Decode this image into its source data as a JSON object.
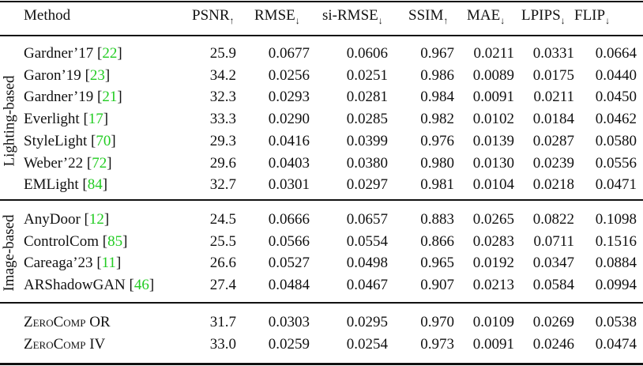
{
  "table": {
    "columns": [
      {
        "label": "Method",
        "arrow": ""
      },
      {
        "label": "PSNR",
        "arrow": "↑"
      },
      {
        "label": "RMSE",
        "arrow": "↓"
      },
      {
        "label": "si-RMSE",
        "arrow": "↓"
      },
      {
        "label": "SSIM",
        "arrow": "↑"
      },
      {
        "label": "MAE",
        "arrow": "↓"
      },
      {
        "label": "LPIPS",
        "arrow": "↓"
      },
      {
        "label": "FLIP",
        "arrow": "↓"
      }
    ],
    "groups": [
      {
        "label": "Lighting-based",
        "rows": [
          {
            "name": "Gardner’17",
            "ref": "22",
            "values": [
              "25.9",
              "0.0677",
              "0.0606",
              "0.967",
              "0.0211",
              "0.0331",
              "0.0664"
            ]
          },
          {
            "name": "Garon’19",
            "ref": "23",
            "values": [
              "34.2",
              "0.0256",
              "0.0251",
              "0.986",
              "0.0089",
              "0.0175",
              "0.0440"
            ]
          },
          {
            "name": "Gardner’19",
            "ref": "21",
            "values": [
              "32.3",
              "0.0293",
              "0.0281",
              "0.984",
              "0.0091",
              "0.0211",
              "0.0450"
            ]
          },
          {
            "name": "Everlight",
            "ref": "17",
            "values": [
              "33.3",
              "0.0290",
              "0.0285",
              "0.982",
              "0.0102",
              "0.0184",
              "0.0462"
            ]
          },
          {
            "name": "StyleLight",
            "ref": "70",
            "values": [
              "29.3",
              "0.0416",
              "0.0399",
              "0.976",
              "0.0139",
              "0.0287",
              "0.0580"
            ]
          },
          {
            "name": "Weber’22",
            "ref": "72",
            "values": [
              "29.6",
              "0.0403",
              "0.0380",
              "0.980",
              "0.0130",
              "0.0239",
              "0.0556"
            ]
          },
          {
            "name": "EMLight",
            "ref": "84",
            "values": [
              "32.7",
              "0.0301",
              "0.0297",
              "0.981",
              "0.0104",
              "0.0218",
              "0.0471"
            ]
          }
        ]
      },
      {
        "label": "Image-based",
        "rows": [
          {
            "name": "AnyDoor",
            "ref": "12",
            "values": [
              "24.5",
              "0.0666",
              "0.0657",
              "0.883",
              "0.0265",
              "0.0822",
              "0.1098"
            ]
          },
          {
            "name": "ControlCom",
            "ref": "85",
            "values": [
              "25.5",
              "0.0566",
              "0.0554",
              "0.866",
              "0.0283",
              "0.0711",
              "0.1516"
            ]
          },
          {
            "name": "Careaga’23",
            "ref": "11",
            "values": [
              "26.6",
              "0.0527",
              "0.0498",
              "0.965",
              "0.0192",
              "0.0347",
              "0.0884"
            ]
          },
          {
            "name": "ARShadowGAN",
            "ref": "46",
            "values": [
              "27.4",
              "0.0484",
              "0.0467",
              "0.907",
              "0.0213",
              "0.0584",
              "0.0994"
            ]
          }
        ]
      },
      {
        "label": "",
        "rows": [
          {
            "name": "ZeroComp OR",
            "ref": "",
            "smallcaps": true,
            "values": [
              "31.7",
              "0.0303",
              "0.0295",
              "0.970",
              "0.0109",
              "0.0269",
              "0.0538"
            ]
          },
          {
            "name": "ZeroComp IV",
            "ref": "",
            "smallcaps": true,
            "values": [
              "33.0",
              "0.0259",
              "0.0254",
              "0.973",
              "0.0091",
              "0.0246",
              "0.0474"
            ]
          }
        ]
      }
    ],
    "ref_color": "#22cc22"
  }
}
